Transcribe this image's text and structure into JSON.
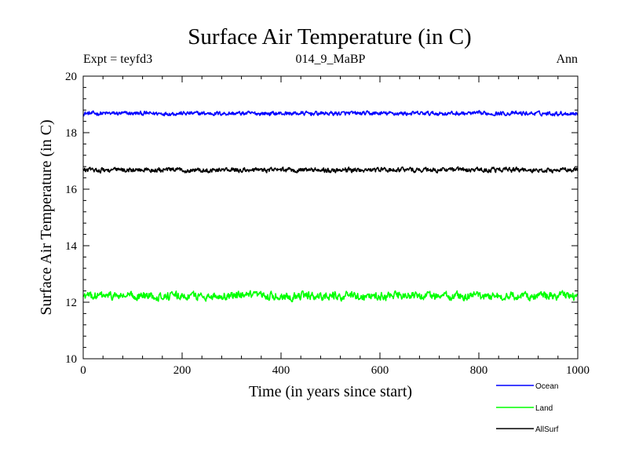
{
  "chart_data": {
    "type": "line",
    "title": "Surface Air Temperature (in C)",
    "subtitle": "014_9_MaBP",
    "left_label": "Expt = teyfd3",
    "right_label": "Ann",
    "xlabel": "Time (in years since start)",
    "ylabel": "Surface Air Temperature (in C)",
    "xlim": [
      0,
      1000
    ],
    "ylim": [
      10,
      20
    ],
    "x_ticks": [
      0,
      200,
      400,
      600,
      800,
      1000
    ],
    "y_ticks": [
      10,
      12,
      14,
      16,
      18,
      20
    ],
    "x_tick_labels": [
      "0",
      "200",
      "400",
      "600",
      "800",
      "1000"
    ],
    "y_tick_labels": [
      "10",
      "12",
      "14",
      "16",
      "18",
      "20"
    ],
    "grid": false,
    "legend_position": "bottom-right",
    "n_points": 1000,
    "series": [
      {
        "name": "Ocean",
        "color": "#0000ff",
        "mean": 18.68,
        "noise_amplitude": 0.07,
        "min": 18.5,
        "max": 18.92
      },
      {
        "name": "Land",
        "color": "#00ff00",
        "mean": 12.22,
        "noise_amplitude": 0.14,
        "min": 11.85,
        "max": 12.62
      },
      {
        "name": "AllSurf",
        "color": "#000000",
        "mean": 16.68,
        "noise_amplitude": 0.08,
        "min": 16.5,
        "max": 16.98
      }
    ]
  }
}
